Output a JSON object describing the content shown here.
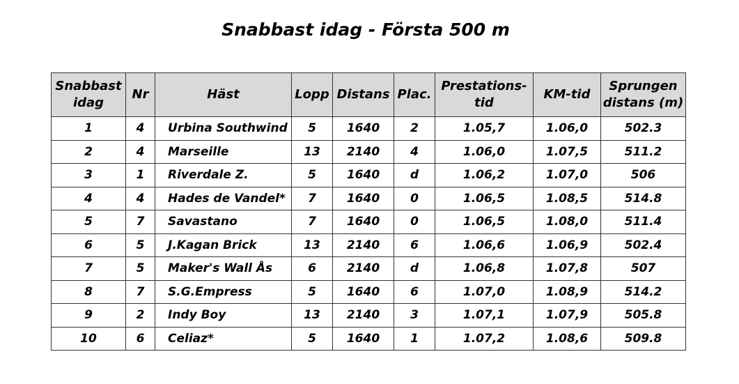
{
  "title": "Snabbast idag - Första 500 m",
  "table": {
    "header": [
      [
        "Snabbast",
        "idag"
      ],
      [
        "Nr"
      ],
      [
        "Häst"
      ],
      [
        "Lopp"
      ],
      [
        "Distans"
      ],
      [
        "Plac."
      ],
      [
        "Prestations-",
        "tid"
      ],
      [
        "KM-tid"
      ],
      [
        "Sprungen",
        "distans (m)"
      ]
    ],
    "rows": [
      [
        "1",
        "4",
        "Urbina Southwind",
        "5",
        "1640",
        "2",
        "1.05,7",
        "1.06,0",
        "502.3"
      ],
      [
        "2",
        "4",
        "Marseille",
        "13",
        "2140",
        "4",
        "1.06,0",
        "1.07,5",
        "511.2"
      ],
      [
        "3",
        "1",
        "Riverdale Z.",
        "5",
        "1640",
        "d",
        "1.06,2",
        "1.07,0",
        "506"
      ],
      [
        "4",
        "4",
        "Hades de Vandel*",
        "7",
        "1640",
        "0",
        "1.06,5",
        "1.08,5",
        "514.8"
      ],
      [
        "5",
        "7",
        "Savastano",
        "7",
        "1640",
        "0",
        "1.06,5",
        "1.08,0",
        "511.4"
      ],
      [
        "6",
        "5",
        "J.Kagan Brick",
        "13",
        "2140",
        "6",
        "1.06,6",
        "1.06,9",
        "502.4"
      ],
      [
        "7",
        "5",
        "Maker's Wall Ås",
        "6",
        "2140",
        "d",
        "1.06,8",
        "1.07,8",
        "507"
      ],
      [
        "8",
        "7",
        "S.G.Empress",
        "5",
        "1640",
        "6",
        "1.07,0",
        "1.08,9",
        "514.2"
      ],
      [
        "9",
        "2",
        "Indy Boy",
        "13",
        "2140",
        "3",
        "1.07,1",
        "1.07,9",
        "505.8"
      ],
      [
        "10",
        "6",
        "Celiaz*",
        "5",
        "1640",
        "1",
        "1.07,2",
        "1.08,6",
        "509.8"
      ]
    ]
  }
}
